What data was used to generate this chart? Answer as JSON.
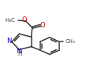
{
  "background_color": "#ffffff",
  "bond_color": "#3a3a3a",
  "atom_colors": {
    "N": "#0000cc",
    "O": "#cc0000",
    "C": "#3a3a3a",
    "H": "#3a3a3a"
  },
  "figsize": [
    1.19,
    0.92
  ],
  "dpi": 100
}
